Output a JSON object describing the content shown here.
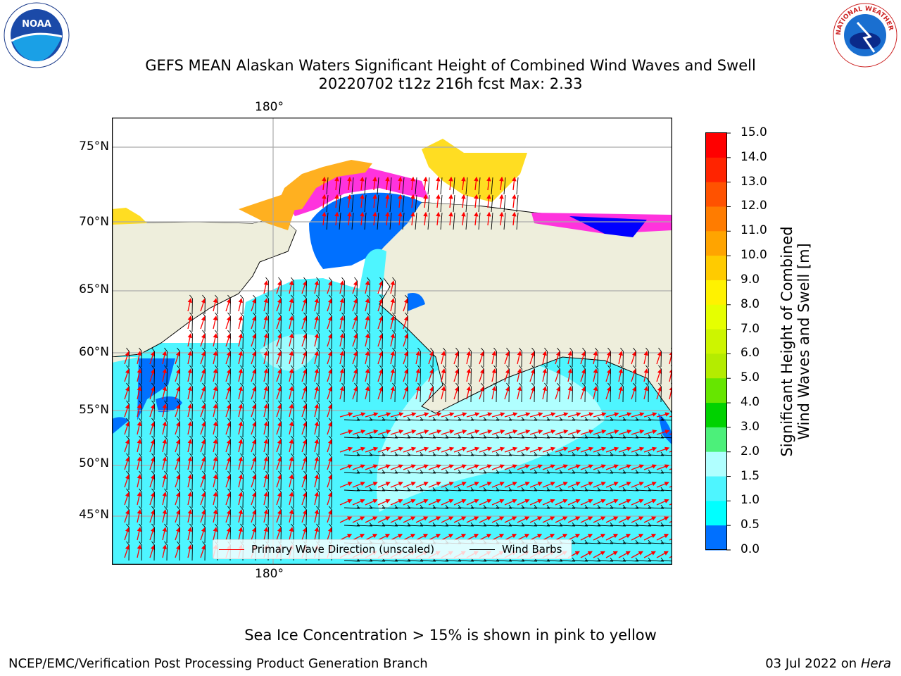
{
  "title": {
    "line1": "GEFS MEAN Alaskan Waters Significant Height of Combined Wind Waves and Swell",
    "line2": "20220702 t12z 216h fcst   Max: 2.33"
  },
  "axes": {
    "lon_label": "180°",
    "lat_labels": [
      "75°N",
      "70°N",
      "65°N",
      "60°N",
      "55°N",
      "50°N",
      "45°N"
    ]
  },
  "legend": {
    "wave_direction": "Primary Wave Direction (unscaled)",
    "wind_barbs": "Wind Barbs"
  },
  "colorbar": {
    "title_line1": "Significant Height of Combined",
    "title_line2": "Wind Waves and Swell [m]",
    "ticks": [
      "15.0",
      "14.0",
      "13.0",
      "12.0",
      "11.0",
      "10.0",
      "9.0",
      "8.0",
      "7.0",
      "6.0",
      "5.0",
      "4.0",
      "3.0",
      "2.0",
      "1.5",
      "1.0",
      "0.5",
      "0.0"
    ],
    "colors": [
      "#ff0000",
      "#ff2400",
      "#ff5200",
      "#ff7c00",
      "#ffa400",
      "#ffcb00",
      "#fff200",
      "#e6ff00",
      "#cdf500",
      "#b4ec00",
      "#66e600",
      "#00d200",
      "#4cf07a",
      "#b0ffff",
      "#4ef5ff",
      "#00ffff",
      "#0070ff",
      "#0000ff"
    ]
  },
  "map_colors": {
    "land": "#eeeedc",
    "ocean_main": "#4ef5ff",
    "ocean_high": "#b0ffff",
    "ocean_low": "#0070ff",
    "ocean_mid": "#00ffff",
    "ice_pink": "#ff33dd",
    "ice_orange": "#ffb020",
    "ice_yellow": "#ffdd22",
    "arrow": "#ff0000",
    "barb": "#000000",
    "grid": "#aaaaaa"
  },
  "note": "Sea Ice Concentration > 15% is shown in pink to yellow",
  "footer": {
    "left": "NCEP/EMC/Verification Post Processing Product Generation Branch",
    "date": "03 Jul 2022 on ",
    "machine": "Hera"
  },
  "logos": {
    "noaa_text": "NOAA",
    "nws_text": "NATIONAL WEATHER SERVICE"
  }
}
